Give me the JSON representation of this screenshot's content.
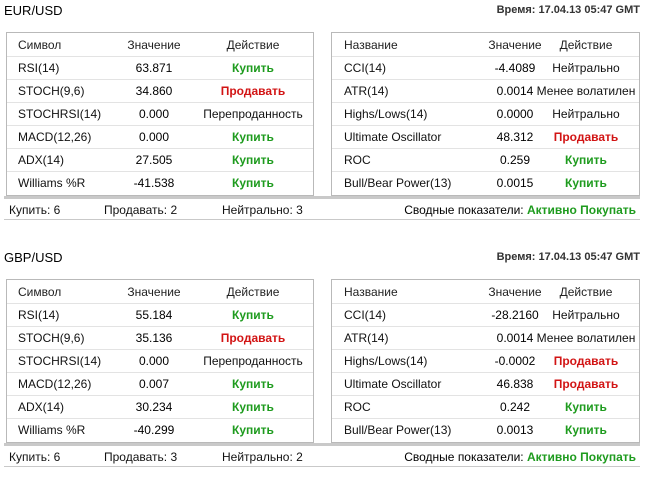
{
  "labels": {
    "col_symbol": "Символ",
    "col_name": "Название",
    "col_value": "Значение",
    "col_action": "Действие",
    "time_prefix": "Время:",
    "summary_label": "Сводные показатели:"
  },
  "sections": [
    {
      "pair": "EUR/USD",
      "time": "17.04.13 05:47 GMT",
      "left_rows": [
        {
          "name": "RSI(14)",
          "value": "63.871",
          "action": "Купить",
          "kind": "buy"
        },
        {
          "name": "STOCH(9,6)",
          "value": "34.860",
          "action": "Продавать",
          "kind": "sell"
        },
        {
          "name": "STOCHRSI(14)",
          "value": "0.000",
          "action": "Перепроданность",
          "kind": "neutral"
        },
        {
          "name": "MACD(12,26)",
          "value": "0.000",
          "action": "Купить",
          "kind": "buy"
        },
        {
          "name": "ADX(14)",
          "value": "27.505",
          "action": "Купить",
          "kind": "buy"
        },
        {
          "name": "Williams %R",
          "value": "-41.538",
          "action": "Купить",
          "kind": "buy"
        }
      ],
      "right_rows": [
        {
          "name": "CCI(14)",
          "value": "-4.4089",
          "action": "Нейтрально",
          "kind": "neutral"
        },
        {
          "name": "ATR(14)",
          "value": "0.0014",
          "action": "Менее волатилен",
          "kind": "neutral"
        },
        {
          "name": "Highs/Lows(14)",
          "value": "0.0000",
          "action": "Нейтрально",
          "kind": "neutral"
        },
        {
          "name": "Ultimate Oscillator",
          "value": "48.312",
          "action": "Продавать",
          "kind": "sell"
        },
        {
          "name": "ROC",
          "value": "0.259",
          "action": "Купить",
          "kind": "buy"
        },
        {
          "name": "Bull/Bear Power(13)",
          "value": "0.0015",
          "action": "Купить",
          "kind": "buy"
        }
      ],
      "summary": {
        "buy": "Купить: 6",
        "sell": "Продавать: 2",
        "neutral": "Нейтрально: 3",
        "verdict": "Активно Покупать"
      }
    },
    {
      "pair": "GBP/USD",
      "time": "17.04.13 05:47 GMT",
      "left_rows": [
        {
          "name": "RSI(14)",
          "value": "55.184",
          "action": "Купить",
          "kind": "buy"
        },
        {
          "name": "STOCH(9,6)",
          "value": "35.136",
          "action": "Продавать",
          "kind": "sell"
        },
        {
          "name": "STOCHRSI(14)",
          "value": "0.000",
          "action": "Перепроданность",
          "kind": "neutral"
        },
        {
          "name": "MACD(12,26)",
          "value": "0.007",
          "action": "Купить",
          "kind": "buy"
        },
        {
          "name": "ADX(14)",
          "value": "30.234",
          "action": "Купить",
          "kind": "buy"
        },
        {
          "name": "Williams %R",
          "value": "-40.299",
          "action": "Купить",
          "kind": "buy"
        }
      ],
      "right_rows": [
        {
          "name": "CCI(14)",
          "value": "-28.2160",
          "action": "Нейтрально",
          "kind": "neutral"
        },
        {
          "name": "ATR(14)",
          "value": "0.0014",
          "action": "Менее волатилен",
          "kind": "neutral"
        },
        {
          "name": "Highs/Lows(14)",
          "value": "-0.0002",
          "action": "Продавать",
          "kind": "sell"
        },
        {
          "name": "Ultimate Oscillator",
          "value": "46.838",
          "action": "Продавать",
          "kind": "sell"
        },
        {
          "name": "ROC",
          "value": "0.242",
          "action": "Купить",
          "kind": "buy"
        },
        {
          "name": "Bull/Bear Power(13)",
          "value": "0.0013",
          "action": "Купить",
          "kind": "buy"
        }
      ],
      "summary": {
        "buy": "Купить: 6",
        "sell": "Продавать: 3",
        "neutral": "Нейтрально: 2",
        "verdict": "Активно Покупать"
      }
    }
  ],
  "colors": {
    "buy": "#1e9b1e",
    "sell": "#d21414",
    "neutral": "#111111"
  }
}
